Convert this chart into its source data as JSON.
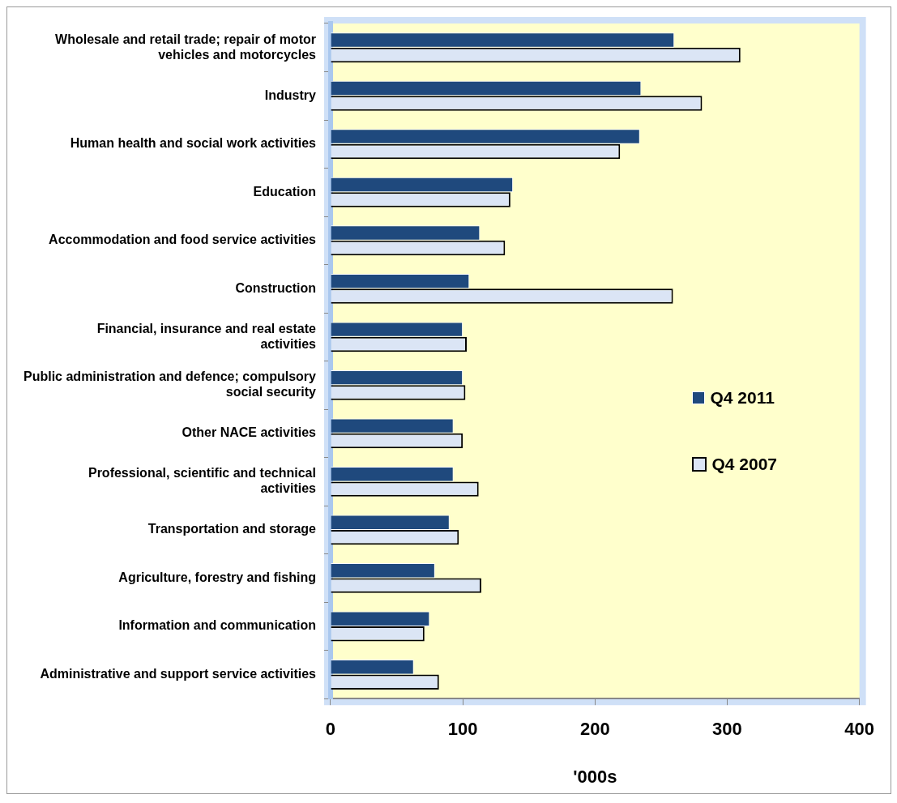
{
  "chart_data": {
    "type": "bar",
    "orientation": "horizontal",
    "xlabel": "'000s",
    "categories": [
      "Wholesale and retail trade; repair of motor vehicles and motorcycles",
      "Industry",
      "Human health and social work activities",
      "Education",
      "Accommodation and food service activities",
      "Construction",
      "Financial, insurance and real estate activities",
      "Public administration and defence; compulsory social security",
      "Other NACE activities",
      "Professional, scientific and technical activities",
      "Transportation and storage",
      "Agriculture, forestry and fishing",
      "Information and communication",
      "Administrative and support service activities"
    ],
    "series": [
      {
        "name": "Q4 2011",
        "color": "#1f497d",
        "values": [
          260,
          235,
          234,
          138,
          113,
          105,
          100,
          100,
          93,
          93,
          90,
          79,
          75,
          63
        ]
      },
      {
        "name": "Q4 2007",
        "color": "#dbe5f5",
        "values": [
          310,
          281,
          219,
          136,
          132,
          259,
          103,
          102,
          100,
          112,
          97,
          114,
          71,
          82
        ]
      }
    ],
    "xlim": [
      0,
      400
    ],
    "xticks": [
      0,
      100,
      200,
      300,
      400
    ],
    "grid": false,
    "legend": "right"
  }
}
